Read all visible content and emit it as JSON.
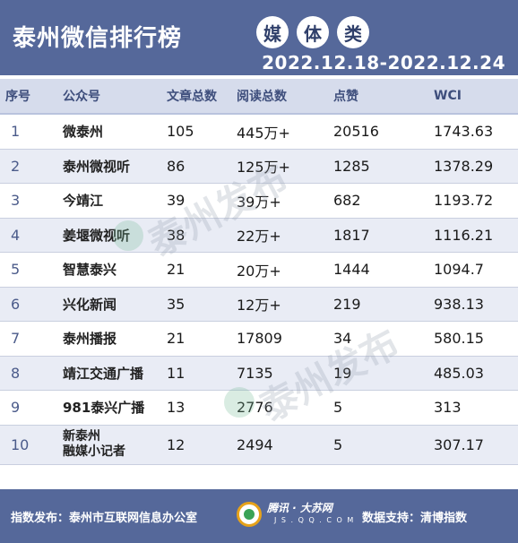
{
  "header": {
    "title": "泰州微信排行榜",
    "badges": [
      "媒",
      "体",
      "类"
    ],
    "date_range": "2022.12.18-2022.12.24"
  },
  "table": {
    "columns": [
      "序号",
      "公众号",
      "文章总数",
      "阅读总数",
      "点赞",
      "WCI"
    ],
    "rows": [
      {
        "rank": "1",
        "name": "微泰州",
        "articles": "105",
        "reads": "445万+",
        "likes": "20516",
        "wci": "1743.63"
      },
      {
        "rank": "2",
        "name": "泰州微视听",
        "articles": "86",
        "reads": "125万+",
        "likes": "1285",
        "wci": "1378.29"
      },
      {
        "rank": "3",
        "name": "今靖江",
        "articles": "39",
        "reads": "39万+",
        "likes": "682",
        "wci": "1193.72"
      },
      {
        "rank": "4",
        "name": "姜堰微视听",
        "articles": "38",
        "reads": "22万+",
        "likes": "1817",
        "wci": "1116.21"
      },
      {
        "rank": "5",
        "name": "智慧泰兴",
        "articles": "21",
        "reads": "20万+",
        "likes": "1444",
        "wci": "1094.7"
      },
      {
        "rank": "6",
        "name": "兴化新闻",
        "articles": "35",
        "reads": "12万+",
        "likes": "219",
        "wci": "938.13"
      },
      {
        "rank": "7",
        "name": "泰州播报",
        "articles": "21",
        "reads": "17809",
        "likes": "34",
        "wci": "580.15"
      },
      {
        "rank": "8",
        "name": "靖江交通广播",
        "articles": "11",
        "reads": "7135",
        "likes": "19",
        "wci": "485.03"
      },
      {
        "rank": "9",
        "name": "981泰兴广播",
        "articles": "13",
        "reads": "2776",
        "likes": "5",
        "wci": "313"
      },
      {
        "rank": "10",
        "name_line1": "新泰州",
        "name_line2": "融媒小记者",
        "articles": "12",
        "reads": "2494",
        "likes": "5",
        "wci": "307.17"
      }
    ]
  },
  "watermark": "泰州发布",
  "footer": {
    "publisher": "指数发布：泰州市互联网信息办公室",
    "brand": "腾讯 · 大苏网",
    "brand_url": "J S . Q Q . C O M",
    "support": "数据支持：清博指数"
  },
  "colors": {
    "header_bg": "#55689a",
    "thead_bg": "#d6dcec",
    "alt_row_bg": "#e9ecf5"
  }
}
